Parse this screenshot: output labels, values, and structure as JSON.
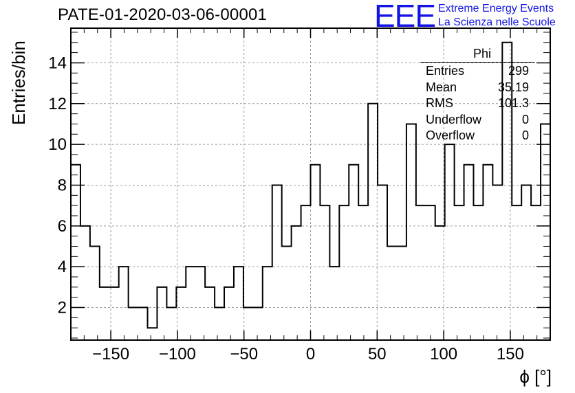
{
  "header": {
    "title": "PATE-01-2020-03-06-00001",
    "logo_text": "EEE",
    "org_line1": "Extreme Energy Events",
    "org_line2": "La Scienza nelle Scuole",
    "brand_color": "#1414e6"
  },
  "stats": {
    "name": "Phi",
    "rows": [
      {
        "label": "Entries",
        "value": "299"
      },
      {
        "label": "Mean",
        "value": "35.19"
      },
      {
        "label": "RMS",
        "value": "101.3"
      },
      {
        "label": "Underflow",
        "value": "0"
      },
      {
        "label": "Overflow",
        "value": "0"
      }
    ]
  },
  "chart_data": {
    "type": "bar",
    "style": "step-histogram",
    "title": "PATE-01-2020-03-06-00001",
    "xlabel": "ϕ [°]",
    "ylabel": "Entries/bin",
    "xlim": [
      -180,
      180
    ],
    "ylim": [
      0.4,
      15.7
    ],
    "bin_width": 7.2,
    "grid": true,
    "x_ticks": [
      -150,
      -100,
      -50,
      0,
      50,
      100,
      150
    ],
    "x_tick_labels": [
      "−150",
      "−100",
      "−50",
      "0",
      "50",
      "100",
      "150"
    ],
    "y_ticks": [
      2,
      4,
      6,
      8,
      10,
      12,
      14
    ],
    "y_tick_labels": [
      "2",
      "4",
      "6",
      "8",
      "10",
      "12",
      "14"
    ],
    "values": [
      9,
      6,
      5,
      3,
      3,
      4,
      2,
      2,
      1,
      3,
      2,
      3,
      4,
      4,
      3,
      2,
      3,
      4,
      2,
      2,
      4,
      8,
      5,
      6,
      7,
      9,
      7,
      4,
      7,
      9,
      7,
      12,
      8,
      5,
      5,
      11,
      7,
      7,
      6,
      10,
      7,
      9,
      7,
      9,
      8,
      15,
      7,
      8,
      7,
      11
    ]
  }
}
